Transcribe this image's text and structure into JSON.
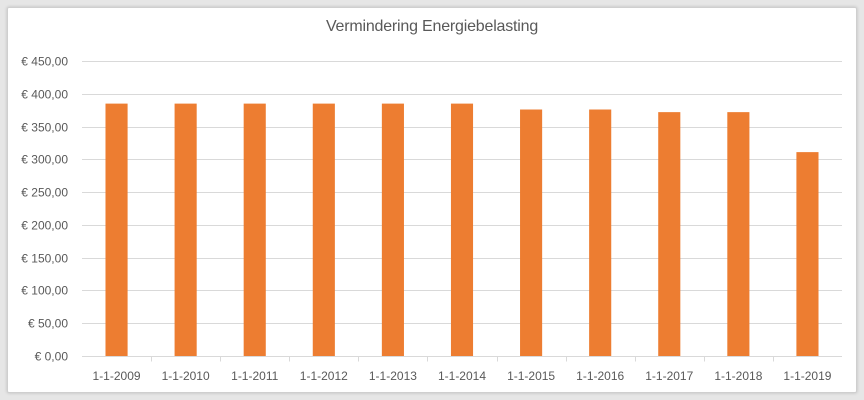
{
  "chart_data": {
    "type": "bar",
    "title": "Vermindering Energiebelasting",
    "xlabel": "",
    "ylabel": "",
    "categories": [
      "1-1-2009",
      "1-1-2010",
      "1-1-2011",
      "1-1-2012",
      "1-1-2013",
      "1-1-2014",
      "1-1-2015",
      "1-1-2016",
      "1-1-2017",
      "1-1-2018",
      "1-1-2019"
    ],
    "values": [
      385,
      385,
      385,
      385,
      385,
      385,
      376,
      376,
      372,
      372,
      311
    ],
    "ylim": [
      0,
      450
    ],
    "yticks": [
      0,
      50,
      100,
      150,
      200,
      250,
      300,
      350,
      400,
      450
    ],
    "ytick_labels": [
      "€ 0,00",
      "€ 50,00",
      "€ 100,00",
      "€ 150,00",
      "€ 200,00",
      "€ 250,00",
      "€ 300,00",
      "€ 350,00",
      "€ 400,00",
      "€ 450,00"
    ],
    "grid": true,
    "legend": "none",
    "bar_color": "#ed7d31",
    "grid_color": "#d9d9d9",
    "text_color": "#595959"
  }
}
